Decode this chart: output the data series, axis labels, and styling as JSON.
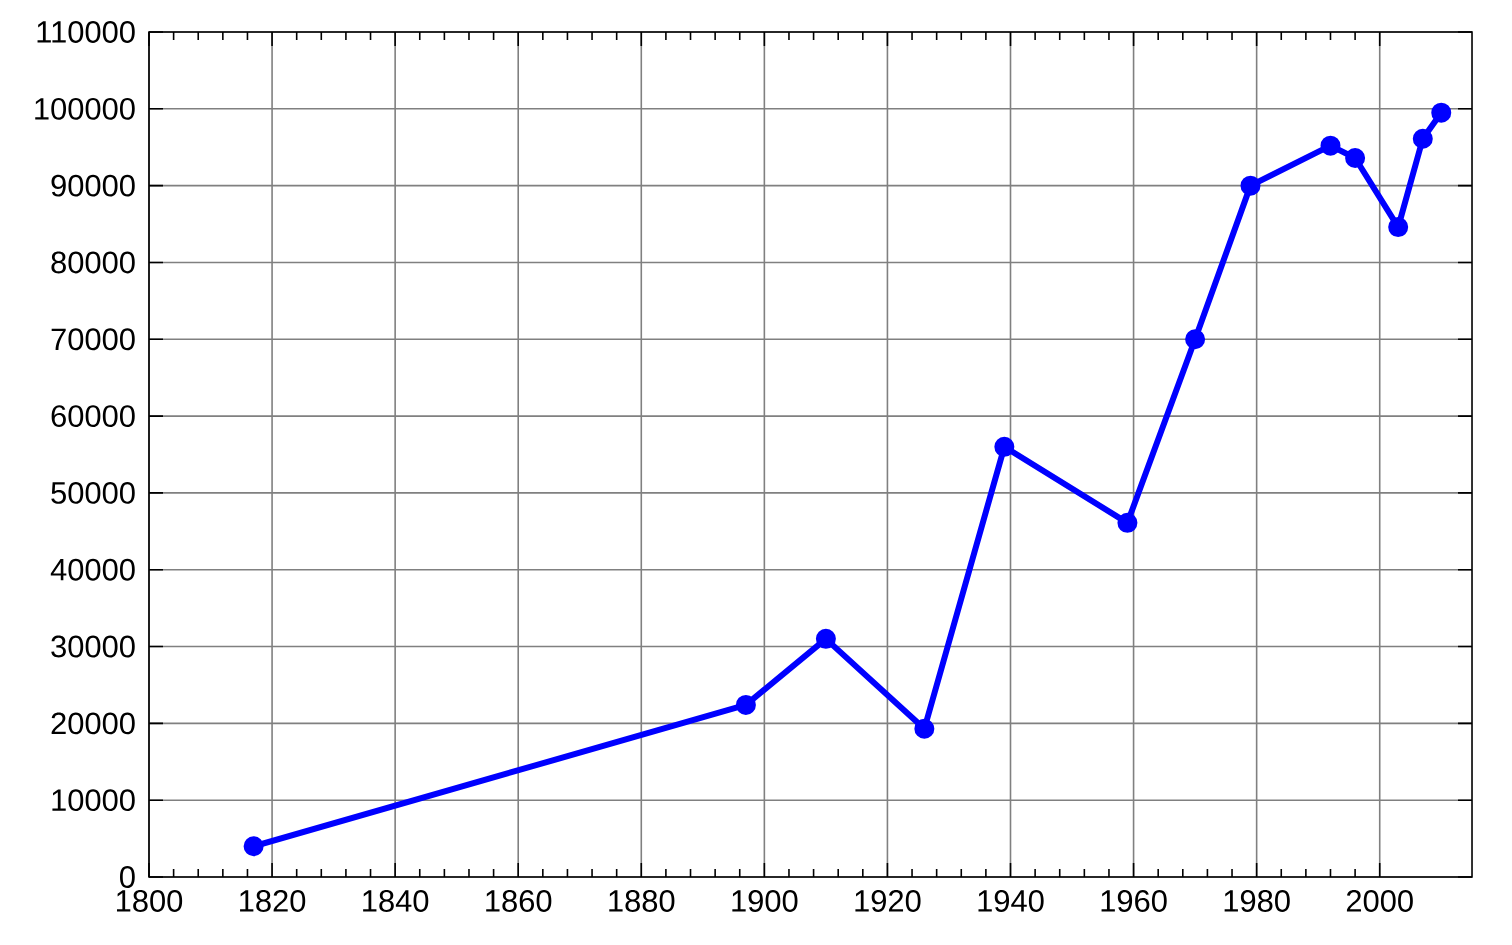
{
  "chart_data": {
    "type": "line",
    "x": [
      1817,
      1897,
      1910,
      1926,
      1939,
      1959,
      1970,
      1979,
      1992,
      1996,
      2003,
      2007,
      2010
    ],
    "series": [
      {
        "color": "#0000ff",
        "values": [
          4000,
          22400,
          31000,
          19300,
          56000,
          46100,
          70000,
          90000,
          95200,
          93600,
          84600,
          96100,
          99500
        ]
      }
    ],
    "xlim": [
      1800,
      2015
    ],
    "ylim": [
      0,
      110000
    ],
    "xticks": [
      1800,
      1820,
      1840,
      1860,
      1880,
      1900,
      1920,
      1940,
      1960,
      1980,
      2000
    ],
    "yticks": [
      0,
      10000,
      20000,
      30000,
      40000,
      50000,
      60000,
      70000,
      80000,
      90000,
      100000,
      110000
    ],
    "grid": true,
    "marker": "circle",
    "line_style": "solid"
  }
}
